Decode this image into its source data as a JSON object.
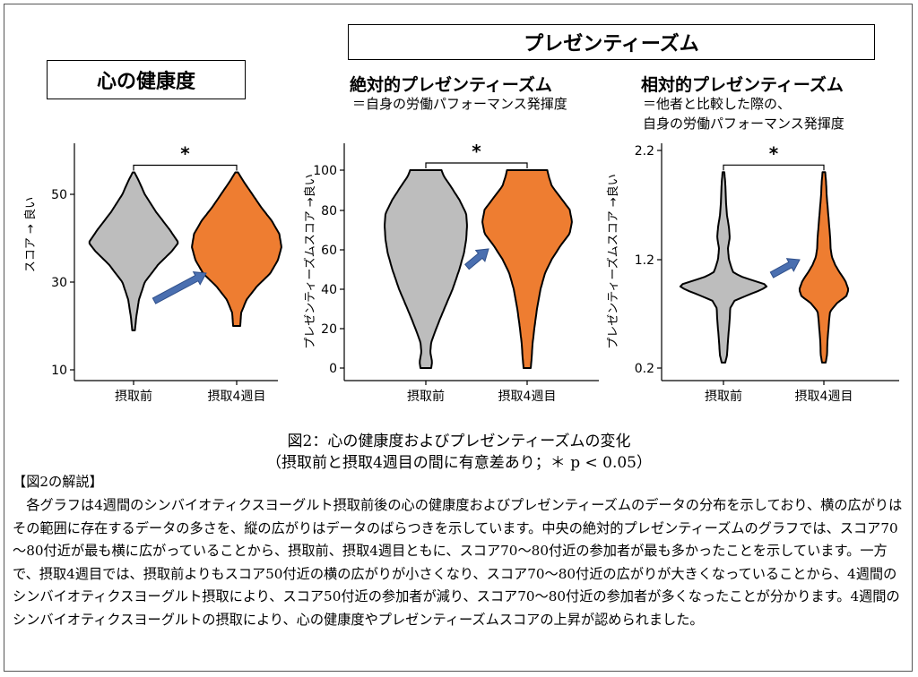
{
  "titles": {
    "mental_health": "心の健康度",
    "presenteeism": "プレゼンティーズム",
    "absolute": "絶対的プレゼンティーズム",
    "absolute_desc": "＝自身の労働パフォーマンス発揮度",
    "relative": "相対的プレゼンティーズム",
    "relative_desc_1": "＝他者と比較した際の、",
    "relative_desc_2": "自身の労働パフォーマンス発揮度"
  },
  "caption": {
    "line1": "図2：心の健康度およびプレゼンティーズムの変化",
    "line2": "（摂取前と摂取4週目の間に有意差あり；＊ p < 0.05）"
  },
  "explanation": {
    "heading": "【図2の解説】",
    "body": "　各グラフは4週間のシンバイオティクスヨーグルト摂取前後の心の健康度およびプレゼンティーズムのデータの分布を示しており、横の広がりはその範囲に存在するデータの多さを、縦の広がりはデータのばらつきを示しています。中央の絶対的プレゼンティーズムのグラフでは、スコア70～80付近が最も横に広がっていることから、摂取前、摂取4週目ともに、スコア70～80付近の参加者が最も多かったことを示しています。一方で、摂取4週目では、摂取前よりもスコア50付近の横の広がりが小さくなり、スコア70～80付近の広がりが大きくなっていることから、4週間のシンバイオティクスヨーグルト摂取により、スコア50付近の参加者が減り、スコア70～80付近の参加者が多くなったことが分かります。4週間のシンバイオティクスヨーグルトの摂取により、心の健康度やプレゼンティーズムスコアの上昇が認められました。"
  },
  "colors": {
    "before": "#bdbdbd",
    "after": "#ee7d31",
    "arrow": "#4a6fb0"
  },
  "chart_data": [
    {
      "type": "violin",
      "title": "心の健康度",
      "ylabel": "スコア → 良い",
      "categories": [
        "摂取前",
        "摂取4週目"
      ],
      "yticks": [
        "10",
        "30",
        "50"
      ],
      "ylim": [
        10,
        60
      ],
      "significance": "*",
      "series": [
        {
          "range": [
            19,
            55
          ],
          "density": [
            [
              19,
              0.03
            ],
            [
              22,
              0.06
            ],
            [
              26,
              0.12
            ],
            [
              30,
              0.25
            ],
            [
              34,
              0.55
            ],
            [
              37,
              0.85
            ],
            [
              39,
              1.0
            ],
            [
              42,
              0.8
            ],
            [
              46,
              0.5
            ],
            [
              50,
              0.25
            ],
            [
              53,
              0.12
            ],
            [
              55,
              0.02
            ]
          ]
        },
        {
          "range": [
            20,
            55
          ],
          "density": [
            [
              20,
              0.08
            ],
            [
              23,
              0.1
            ],
            [
              26,
              0.22
            ],
            [
              29,
              0.45
            ],
            [
              32,
              0.75
            ],
            [
              35,
              0.92
            ],
            [
              38,
              1.0
            ],
            [
              41,
              0.95
            ],
            [
              44,
              0.78
            ],
            [
              47,
              0.55
            ],
            [
              50,
              0.35
            ],
            [
              53,
              0.15
            ],
            [
              55,
              0.03
            ]
          ]
        }
      ]
    },
    {
      "type": "violin",
      "title": "絶対的プレゼンティーズム",
      "ylabel": "プレゼンティーズムスコア →良い",
      "categories": [
        "摂取前",
        "摂取4週目"
      ],
      "yticks": [
        "0",
        "20",
        "40",
        "60",
        "80",
        "100"
      ],
      "ylim": [
        -3,
        105
      ],
      "significance": "*",
      "series": [
        {
          "range": [
            0,
            100
          ],
          "density": [
            [
              0,
              0.12
            ],
            [
              3,
              0.14
            ],
            [
              8,
              0.1
            ],
            [
              13,
              0.12
            ],
            [
              18,
              0.2
            ],
            [
              25,
              0.32
            ],
            [
              32,
              0.45
            ],
            [
              40,
              0.6
            ],
            [
              50,
              0.75
            ],
            [
              58,
              0.85
            ],
            [
              65,
              0.9
            ],
            [
              72,
              0.92
            ],
            [
              78,
              0.9
            ],
            [
              85,
              0.75
            ],
            [
              92,
              0.55
            ],
            [
              97,
              0.4
            ],
            [
              100,
              0.35
            ]
          ]
        },
        {
          "range": [
            0,
            100
          ],
          "density": [
            [
              0,
              0.08
            ],
            [
              5,
              0.1
            ],
            [
              12,
              0.12
            ],
            [
              20,
              0.16
            ],
            [
              30,
              0.22
            ],
            [
              40,
              0.3
            ],
            [
              48,
              0.4
            ],
            [
              55,
              0.55
            ],
            [
              62,
              0.75
            ],
            [
              68,
              0.95
            ],
            [
              74,
              1.0
            ],
            [
              80,
              0.95
            ],
            [
              86,
              0.75
            ],
            [
              92,
              0.55
            ],
            [
              97,
              0.48
            ],
            [
              100,
              0.45
            ]
          ]
        }
      ]
    },
    {
      "type": "violin",
      "title": "相対的プレゼンティーズム",
      "ylabel": "プレゼンティーズムスコア →良い",
      "categories": [
        "摂取前",
        "摂取4週目"
      ],
      "yticks": [
        "0.2",
        "1.2",
        "2.2"
      ],
      "ylim": [
        0.1,
        2.25
      ],
      "significance": "*",
      "series": [
        {
          "range": [
            0.25,
            2.0
          ],
          "density": [
            [
              0.25,
              0.04
            ],
            [
              0.32,
              0.08
            ],
            [
              0.45,
              0.1
            ],
            [
              0.55,
              0.12
            ],
            [
              0.65,
              0.14
            ],
            [
              0.75,
              0.15
            ],
            [
              0.82,
              0.25
            ],
            [
              0.88,
              0.6
            ],
            [
              0.92,
              0.85
            ],
            [
              0.96,
              1.0
            ],
            [
              1.0,
              0.7
            ],
            [
              1.04,
              0.4
            ],
            [
              1.08,
              0.22
            ],
            [
              1.12,
              0.18
            ],
            [
              1.2,
              0.12
            ],
            [
              1.3,
              0.1
            ],
            [
              1.4,
              0.14
            ],
            [
              1.5,
              0.12
            ],
            [
              1.6,
              0.08
            ],
            [
              1.7,
              0.06
            ],
            [
              1.8,
              0.05
            ],
            [
              1.9,
              0.04
            ],
            [
              2.0,
              0.02
            ]
          ]
        },
        {
          "range": [
            0.25,
            2.0
          ],
          "density": [
            [
              0.25,
              0.04
            ],
            [
              0.32,
              0.07
            ],
            [
              0.45,
              0.08
            ],
            [
              0.55,
              0.1
            ],
            [
              0.65,
              0.12
            ],
            [
              0.72,
              0.14
            ],
            [
              0.8,
              0.3
            ],
            [
              0.86,
              0.5
            ],
            [
              0.92,
              0.55
            ],
            [
              1.0,
              0.48
            ],
            [
              1.08,
              0.35
            ],
            [
              1.15,
              0.25
            ],
            [
              1.22,
              0.18
            ],
            [
              1.3,
              0.15
            ],
            [
              1.4,
              0.14
            ],
            [
              1.5,
              0.12
            ],
            [
              1.6,
              0.1
            ],
            [
              1.7,
              0.08
            ],
            [
              1.8,
              0.06
            ],
            [
              1.9,
              0.05
            ],
            [
              2.0,
              0.03
            ]
          ]
        }
      ]
    }
  ]
}
